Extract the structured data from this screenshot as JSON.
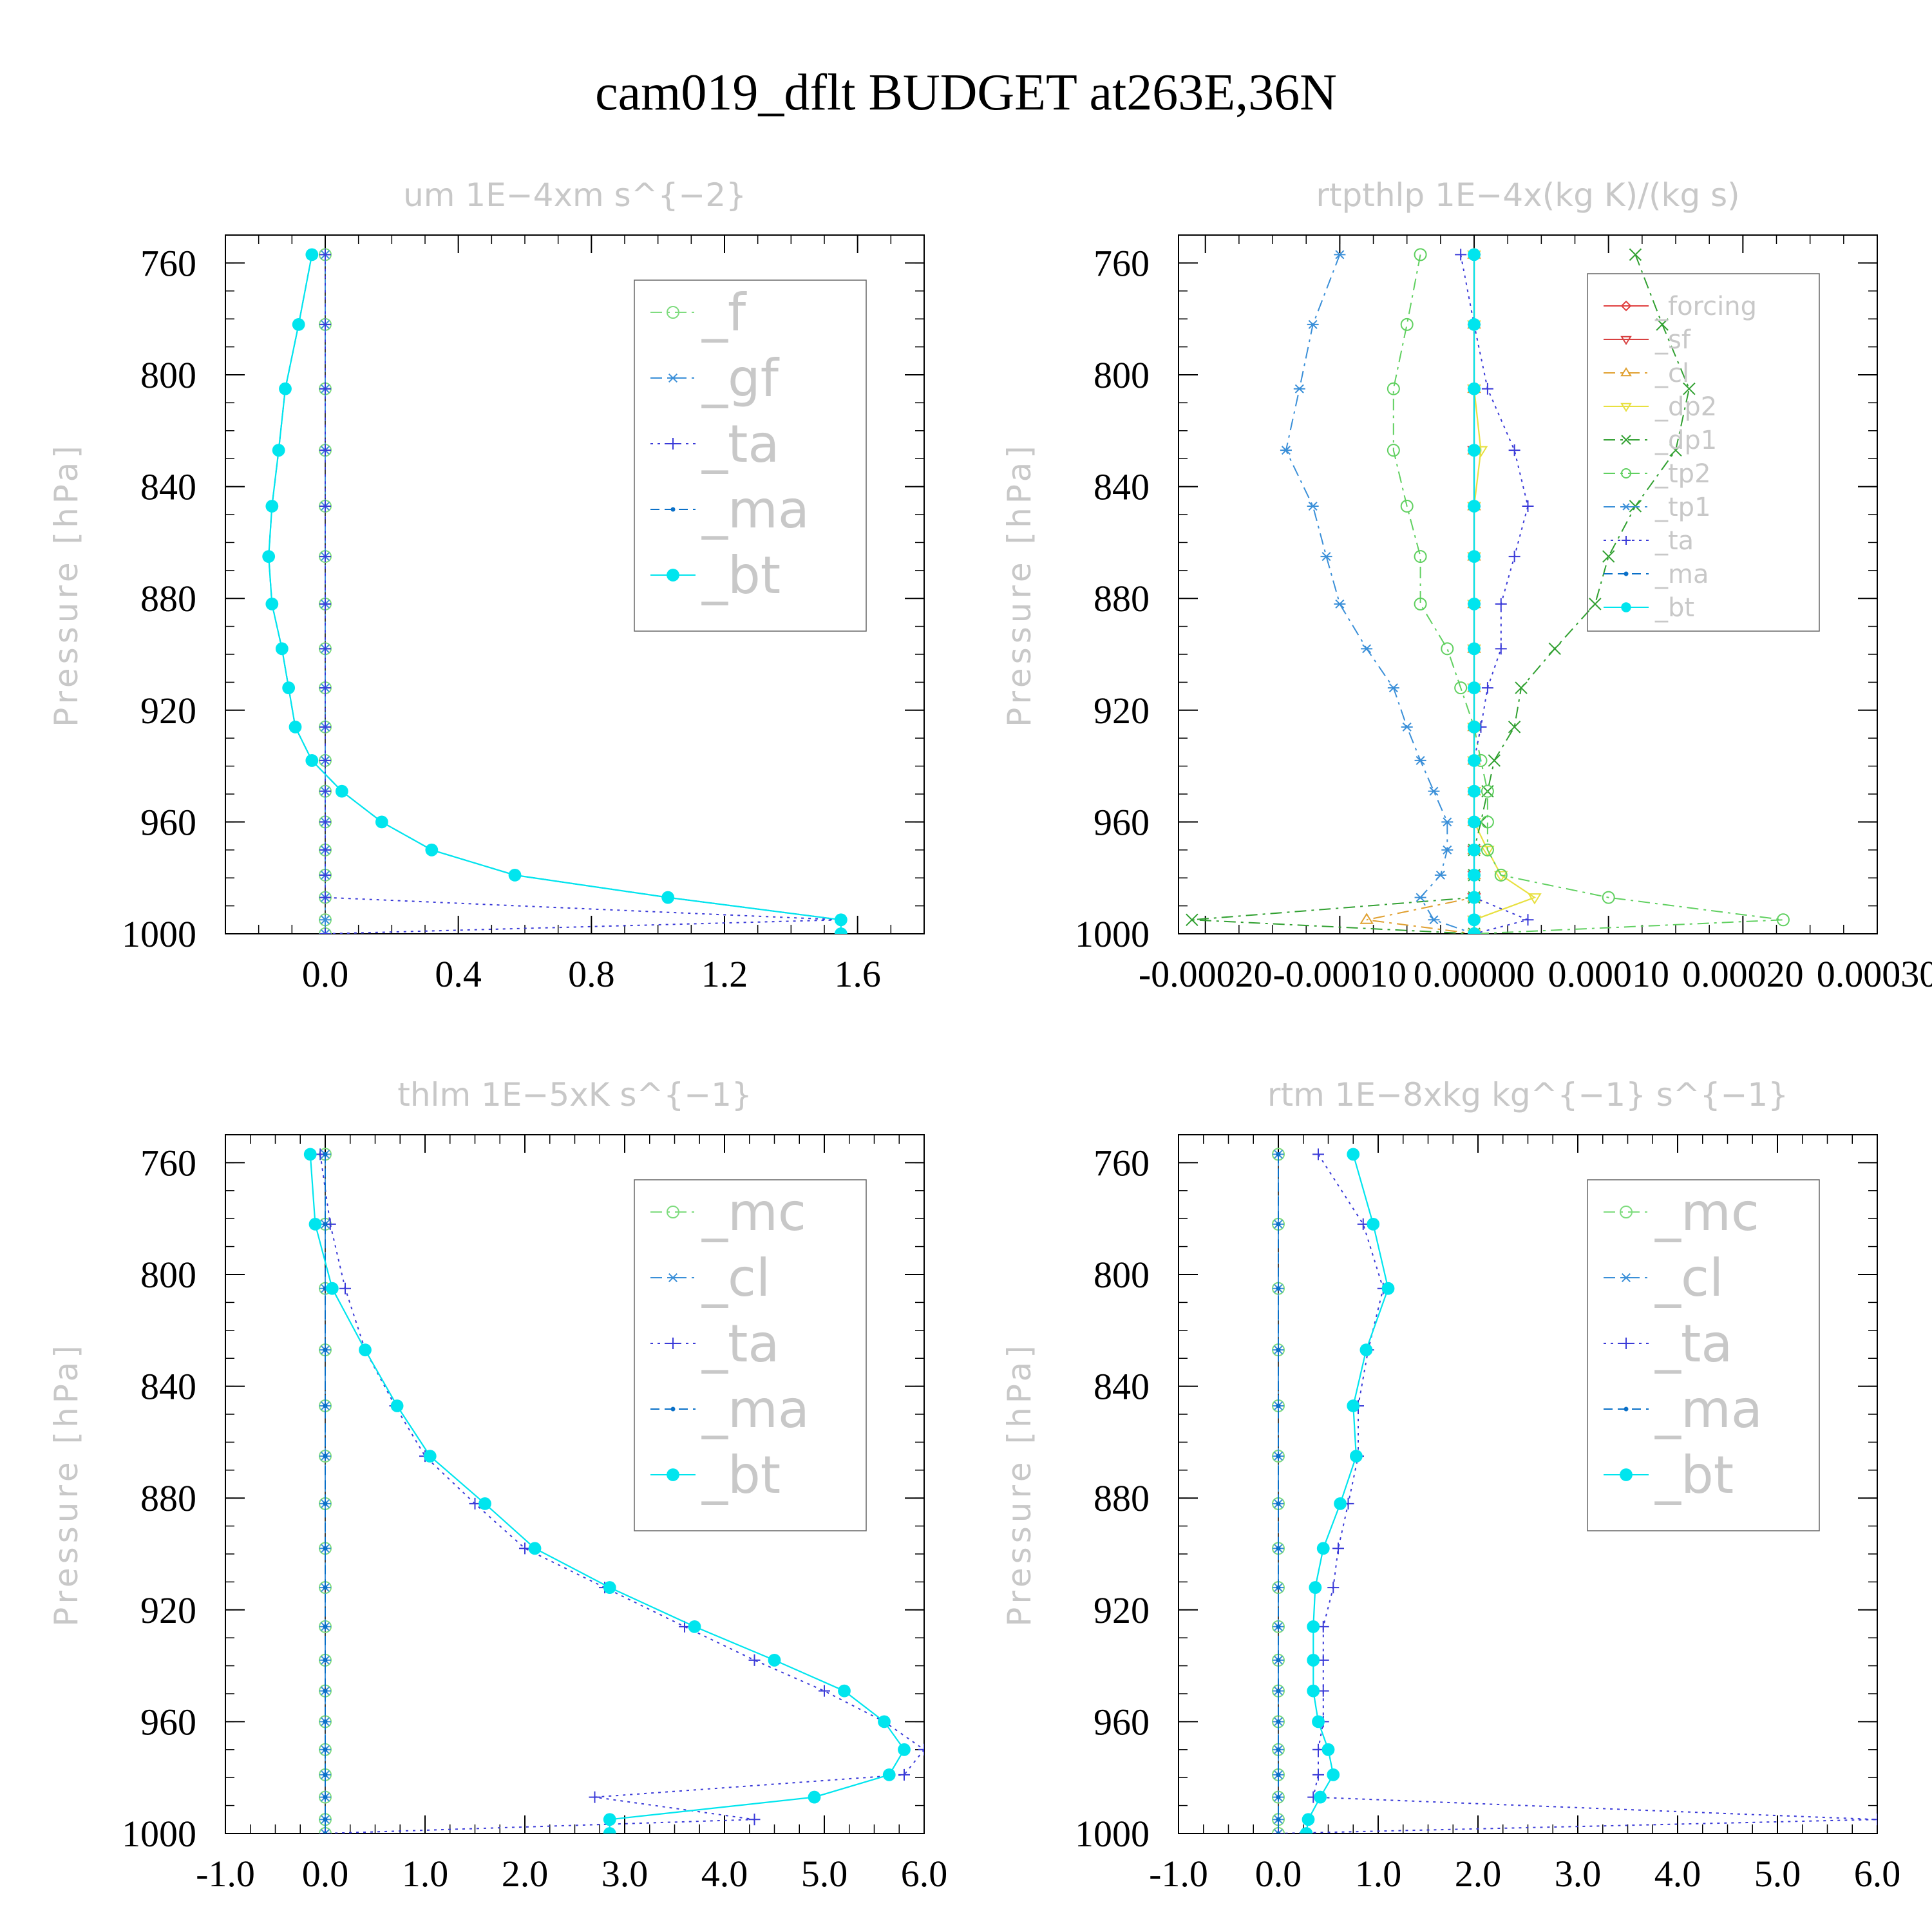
{
  "figure": {
    "title": "cam019_dflt  BUDGET at263E,36N"
  },
  "chart_data": [
    {
      "type": "line",
      "panel": "top-left",
      "title": "um   1E−4xm s^{−2}",
      "ylabel": "Pressure [hPa]",
      "xlabel": "",
      "xlim": [
        -0.3,
        1.8
      ],
      "ylim": [
        1000,
        750
      ],
      "xticks": [
        0.0,
        0.4,
        0.8,
        1.2,
        1.6
      ],
      "xtick_labels": [
        "0.0",
        "0.4",
        "0.8",
        "1.2",
        "1.6"
      ],
      "yticks": [
        760,
        800,
        840,
        880,
        920,
        960,
        1000
      ],
      "ytick_labels": [
        "760",
        "800",
        "840",
        "880",
        "920",
        "960",
        "1000"
      ],
      "legend_position": "top-right",
      "legend_size": "big",
      "y": [
        757,
        782,
        805,
        827,
        847,
        865,
        882,
        898,
        912,
        926,
        938,
        949,
        960,
        970,
        979,
        987,
        995,
        1000
      ],
      "series": [
        {
          "name": "_f",
          "color": "#7fdc7f",
          "style": "dashdot",
          "marker": "circle-open",
          "values": [
            0,
            0,
            0,
            0,
            0,
            0,
            0,
            0,
            0,
            0,
            0,
            0,
            0,
            0,
            0,
            0,
            0,
            0
          ]
        },
        {
          "name": "_gf",
          "color": "#3a8fd8",
          "style": "dashdot",
          "marker": "star",
          "values": [
            0,
            0,
            0,
            0,
            0,
            0,
            0,
            0,
            0,
            0,
            0,
            0,
            0,
            0,
            0,
            0,
            0,
            0
          ]
        },
        {
          "name": "_ta",
          "color": "#3a3ad8",
          "style": "dotted",
          "marker": "plus",
          "values": [
            0,
            0,
            0,
            0,
            0,
            0,
            0,
            0,
            0,
            0,
            0,
            0,
            0,
            0,
            0,
            0,
            1.55,
            0
          ]
        },
        {
          "name": "_ma",
          "color": "#0a70c8",
          "style": "dashed",
          "marker": "dot",
          "values": [
            -0.04,
            -0.08,
            -0.12,
            -0.14,
            -0.16,
            -0.17,
            -0.16,
            -0.13,
            -0.11,
            -0.09,
            -0.04,
            0.05,
            0.17,
            0.32,
            0.57,
            1.03,
            1.55,
            1.55
          ]
        },
        {
          "name": "_bt",
          "color": "#00e5ee",
          "style": "solid",
          "marker": "filled-circle",
          "values": [
            -0.04,
            -0.08,
            -0.12,
            -0.14,
            -0.16,
            -0.17,
            -0.16,
            -0.13,
            -0.11,
            -0.09,
            -0.04,
            0.05,
            0.17,
            0.32,
            0.57,
            1.03,
            1.55,
            1.55
          ]
        }
      ]
    },
    {
      "type": "line",
      "panel": "top-right",
      "title": "rtpthlp   1E−4x(kg K)/(kg s)",
      "ylabel": "Pressure [hPa]",
      "xlabel": "",
      "xlim": [
        -0.00022,
        0.0003
      ],
      "ylim": [
        1000,
        750
      ],
      "xticks": [
        -0.0002,
        -0.0001,
        0.0,
        0.0001,
        0.0002,
        0.0003
      ],
      "xtick_labels": [
        "-0.00020",
        "-0.00010",
        "0.00000",
        "0.00010",
        "0.00020",
        "0.00030"
      ],
      "yticks": [
        760,
        800,
        840,
        880,
        920,
        960,
        1000
      ],
      "ytick_labels": [
        "760",
        "800",
        "840",
        "880",
        "920",
        "960",
        "1000"
      ],
      "legend_position": "top-right",
      "legend_size": "small",
      "y": [
        757,
        782,
        805,
        827,
        847,
        865,
        882,
        898,
        912,
        926,
        938,
        949,
        960,
        970,
        979,
        987,
        995,
        1000
      ],
      "series": [
        {
          "name": "_forcing",
          "color": "#e04040",
          "style": "solid",
          "marker": "diamond-open",
          "values": [
            0,
            0,
            0,
            0,
            0,
            0,
            0,
            0,
            0,
            0,
            0,
            0,
            0,
            0,
            0,
            0,
            0,
            0
          ]
        },
        {
          "name": "_sf",
          "color": "#d84040",
          "style": "solid",
          "marker": "triangle-open",
          "values": [
            0,
            0,
            0,
            0,
            0,
            0,
            0,
            0,
            0,
            0,
            0,
            0,
            0,
            0,
            0,
            0,
            0,
            0
          ]
        },
        {
          "name": "_cl",
          "color": "#e0a030",
          "style": "dashdot",
          "marker": "triangle-up",
          "values": [
            0,
            0,
            0,
            0,
            0,
            0,
            0,
            0,
            0,
            0,
            0,
            0,
            0,
            0,
            0,
            0,
            -8e-05,
            0
          ]
        },
        {
          "name": "_dp2",
          "color": "#e8e040",
          "style": "solid",
          "marker": "triangle-down",
          "values": [
            0,
            0,
            0,
            5e-06,
            0,
            0,
            0,
            0,
            0,
            0,
            0,
            0,
            0,
            1e-05,
            2e-05,
            4.5e-05,
            0,
            0
          ]
        },
        {
          "name": "_dp1",
          "color": "#30a030",
          "style": "dashdot",
          "marker": "x",
          "values": [
            0.00012,
            0.00014,
            0.00016,
            0.00015,
            0.00012,
            0.0001,
            9e-05,
            6e-05,
            3.5e-05,
            3e-05,
            1.5e-05,
            1e-05,
            5e-06,
            0,
            0,
            0,
            -0.00021,
            0
          ]
        },
        {
          "name": "_tp2",
          "color": "#60d060",
          "style": "dashdot",
          "marker": "circle-open",
          "values": [
            -4e-05,
            -5e-05,
            -6e-05,
            -6e-05,
            -5e-05,
            -4e-05,
            -4e-05,
            -2e-05,
            -1e-05,
            0,
            5e-06,
            1e-05,
            1e-05,
            1e-05,
            2e-05,
            0.0001,
            0.00023,
            0
          ]
        },
        {
          "name": "_tp1",
          "color": "#3a8fd8",
          "style": "dashdot",
          "marker": "star",
          "values": [
            -0.0001,
            -0.00012,
            -0.00013,
            -0.00014,
            -0.00012,
            -0.00011,
            -0.0001,
            -8e-05,
            -6e-05,
            -5e-05,
            -4e-05,
            -3e-05,
            -2e-05,
            -2e-05,
            -2.5e-05,
            -4e-05,
            -3e-05,
            0
          ]
        },
        {
          "name": "_ta",
          "color": "#3a3ad8",
          "style": "dotted",
          "marker": "plus",
          "values": [
            -1e-05,
            0,
            1e-05,
            3e-05,
            4e-05,
            3e-05,
            2e-05,
            2e-05,
            1e-05,
            5e-06,
            0,
            0,
            0,
            0,
            0,
            0,
            4e-05,
            0
          ]
        },
        {
          "name": "_ma",
          "color": "#0a70c8",
          "style": "dashed",
          "marker": "dot",
          "values": [
            0,
            0,
            0,
            0,
            0,
            0,
            0,
            0,
            0,
            0,
            0,
            0,
            0,
            0,
            0,
            0,
            0,
            0
          ]
        },
        {
          "name": "_bt",
          "color": "#00e5ee",
          "style": "solid",
          "marker": "filled-circle",
          "values": [
            0,
            0,
            0,
            0,
            0,
            0,
            0,
            0,
            0,
            0,
            0,
            0,
            0,
            0,
            0,
            0,
            0,
            0
          ]
        }
      ]
    },
    {
      "type": "line",
      "panel": "bottom-left",
      "title": "thlm   1E−5xK s^{−1}",
      "ylabel": "Pressure [hPa]",
      "xlabel": "",
      "xlim": [
        -1.0,
        6.0
      ],
      "ylim": [
        1000,
        750
      ],
      "xticks": [
        -1.0,
        0.0,
        1.0,
        2.0,
        3.0,
        4.0,
        5.0,
        6.0
      ],
      "xtick_labels": [
        "-1.0",
        "0.0",
        "1.0",
        "2.0",
        "3.0",
        "4.0",
        "5.0",
        "6.0"
      ],
      "yticks": [
        760,
        800,
        840,
        880,
        920,
        960,
        1000
      ],
      "ytick_labels": [
        "760",
        "800",
        "840",
        "880",
        "920",
        "960",
        "1000"
      ],
      "legend_position": "top-right",
      "legend_size": "big",
      "y": [
        757,
        782,
        805,
        827,
        847,
        865,
        882,
        898,
        912,
        926,
        938,
        949,
        960,
        970,
        979,
        987,
        995,
        1000
      ],
      "series": [
        {
          "name": "_mc",
          "color": "#7fdc7f",
          "style": "dashdot",
          "marker": "circle-open",
          "values": [
            0,
            0,
            0,
            0,
            0,
            0,
            0,
            0,
            0,
            0,
            0,
            0,
            0,
            0,
            0,
            0,
            0,
            0
          ]
        },
        {
          "name": "_cl",
          "color": "#3a8fd8",
          "style": "dashdot",
          "marker": "star",
          "values": [
            0,
            0,
            0,
            0,
            0,
            0,
            0,
            0,
            0,
            0,
            0,
            0,
            0,
            0,
            0,
            0,
            0,
            0
          ]
        },
        {
          "name": "_ta",
          "color": "#3a3ad8",
          "style": "dotted",
          "marker": "plus",
          "values": [
            -0.05,
            0.05,
            0.2,
            0.4,
            0.7,
            1.0,
            1.5,
            2.0,
            2.8,
            3.6,
            4.3,
            5.0,
            5.6,
            6.0,
            5.8,
            2.7,
            4.3,
            0
          ]
        },
        {
          "name": "_ma",
          "color": "#0a70c8",
          "style": "dashed",
          "marker": "dot",
          "values": [
            0,
            0,
            0,
            0,
            0,
            0,
            0,
            0,
            0,
            0,
            0,
            0,
            0,
            0,
            0,
            0,
            0,
            0
          ]
        },
        {
          "name": "_bt",
          "color": "#00e5ee",
          "style": "solid",
          "marker": "filled-circle",
          "values": [
            -0.15,
            -0.1,
            0.07,
            0.4,
            0.72,
            1.05,
            1.6,
            2.1,
            2.85,
            3.7,
            4.5,
            5.2,
            5.6,
            5.8,
            5.65,
            4.9,
            2.85,
            2.85
          ]
        }
      ]
    },
    {
      "type": "line",
      "panel": "bottom-right",
      "title": "rtm   1E−8xkg kg^{−1} s^{−1}",
      "ylabel": "Pressure [hPa]",
      "xlabel": "",
      "xlim": [
        -1.0,
        6.0
      ],
      "ylim": [
        1000,
        750
      ],
      "xticks": [
        -1.0,
        0.0,
        1.0,
        2.0,
        3.0,
        4.0,
        5.0,
        6.0
      ],
      "xtick_labels": [
        "-1.0",
        "0.0",
        "1.0",
        "2.0",
        "3.0",
        "4.0",
        "5.0",
        "6.0"
      ],
      "yticks": [
        760,
        800,
        840,
        880,
        920,
        960,
        1000
      ],
      "ytick_labels": [
        "760",
        "800",
        "840",
        "880",
        "920",
        "960",
        "1000"
      ],
      "legend_position": "top-right",
      "legend_size": "big",
      "y": [
        757,
        782,
        805,
        827,
        847,
        865,
        882,
        898,
        912,
        926,
        938,
        949,
        960,
        970,
        979,
        987,
        995,
        1000
      ],
      "series": [
        {
          "name": "_mc",
          "color": "#7fdc7f",
          "style": "dashdot",
          "marker": "circle-open",
          "values": [
            0,
            0,
            0,
            0,
            0,
            0,
            0,
            0,
            0,
            0,
            0,
            0,
            0,
            0,
            0,
            0,
            0,
            0
          ]
        },
        {
          "name": "_cl",
          "color": "#3a8fd8",
          "style": "dashdot",
          "marker": "star",
          "values": [
            0,
            0,
            0,
            0,
            0,
            0,
            0,
            0,
            0,
            0,
            0,
            0,
            0,
            0,
            0,
            0,
            0,
            0
          ]
        },
        {
          "name": "_ta",
          "color": "#3a3ad8",
          "style": "dotted",
          "marker": "plus",
          "values": [
            0.4,
            0.85,
            1.05,
            0.9,
            0.8,
            0.8,
            0.7,
            0.6,
            0.55,
            0.45,
            0.45,
            0.45,
            0.45,
            0.4,
            0.4,
            0.35,
            6.0,
            0
          ]
        },
        {
          "name": "_ma",
          "color": "#0a70c8",
          "style": "dashed",
          "marker": "dot",
          "values": [
            0,
            0,
            0,
            0,
            0,
            0,
            0,
            0,
            0,
            0,
            0,
            0,
            0,
            0,
            0,
            0,
            0,
            0
          ]
        },
        {
          "name": "_bt",
          "color": "#00e5ee",
          "style": "solid",
          "marker": "filled-circle",
          "values": [
            0.75,
            0.95,
            1.1,
            0.88,
            0.75,
            0.78,
            0.62,
            0.45,
            0.37,
            0.35,
            0.35,
            0.35,
            0.4,
            0.5,
            0.55,
            0.42,
            0.3,
            0.28
          ]
        }
      ]
    }
  ]
}
